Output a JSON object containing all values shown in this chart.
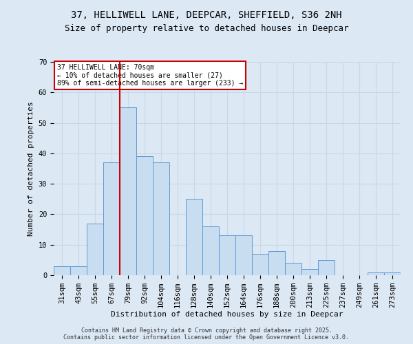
{
  "title1": "37, HELLIWELL LANE, DEEPCAR, SHEFFIELD, S36 2NH",
  "title2": "Size of property relative to detached houses in Deepcar",
  "xlabel": "Distribution of detached houses by size in Deepcar",
  "ylabel": "Number of detached properties",
  "footer": "Contains HM Land Registry data © Crown copyright and database right 2025.\nContains public sector information licensed under the Open Government Licence v3.0.",
  "categories": [
    "31sqm",
    "43sqm",
    "55sqm",
    "67sqm",
    "79sqm",
    "92sqm",
    "104sqm",
    "116sqm",
    "128sqm",
    "140sqm",
    "152sqm",
    "164sqm",
    "176sqm",
    "188sqm",
    "200sqm",
    "213sqm",
    "225sqm",
    "237sqm",
    "249sqm",
    "261sqm",
    "273sqm"
  ],
  "values": [
    3,
    3,
    17,
    37,
    55,
    39,
    37,
    0,
    25,
    16,
    13,
    13,
    7,
    8,
    4,
    2,
    5,
    0,
    0,
    1,
    1
  ],
  "bar_color": "#c9ddf0",
  "bar_edge_color": "#5b9bd5",
  "vline_index": 3.5,
  "vline_color": "#cc0000",
  "annotation_text": "37 HELLIWELL LANE: 70sqm\n← 10% of detached houses are smaller (27)\n89% of semi-detached houses are larger (233) →",
  "annotation_box_color": "#ffffff",
  "annotation_box_edge": "#cc0000",
  "ylim": [
    0,
    70
  ],
  "yticks": [
    0,
    10,
    20,
    30,
    40,
    50,
    60,
    70
  ],
  "bg_color": "#dce8f4",
  "plot_bg_color": "#dce8f4",
  "grid_color": "#c8d8e8",
  "title_fontsize": 10,
  "subtitle_fontsize": 9,
  "axis_fontsize": 8,
  "tick_fontsize": 7.5,
  "footer_fontsize": 6
}
